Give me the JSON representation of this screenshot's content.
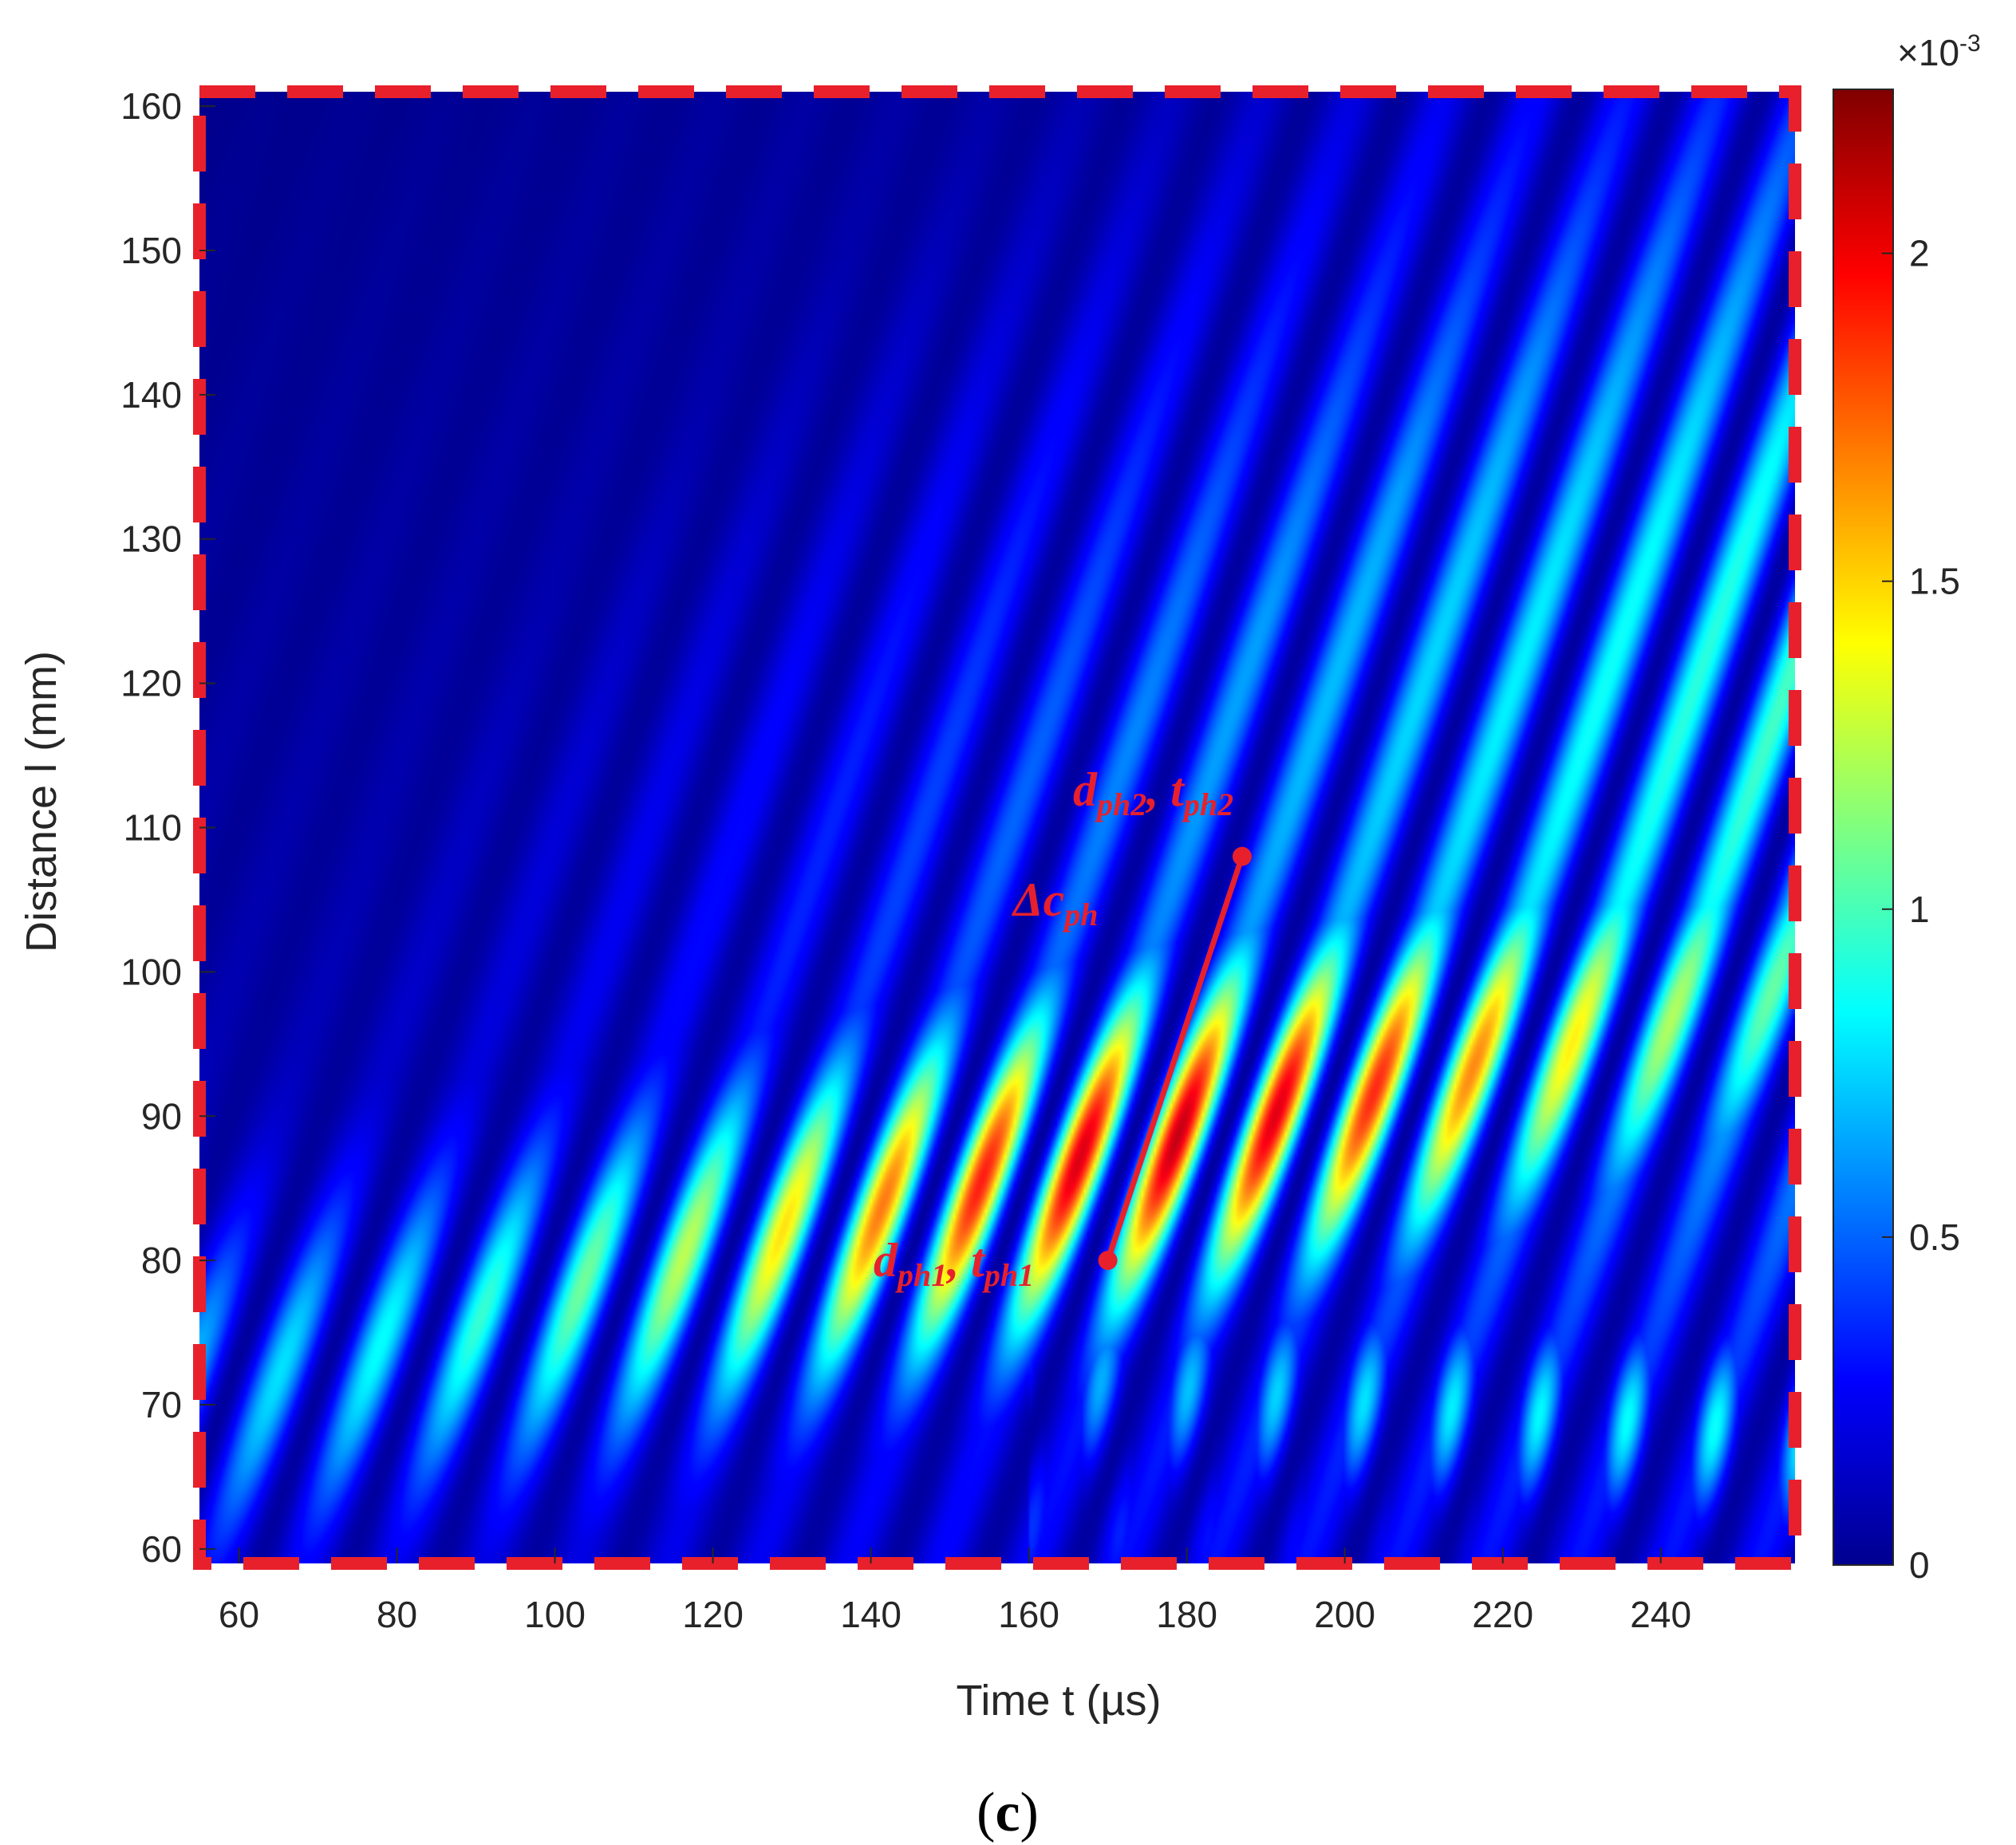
{
  "chart_data": {
    "type": "heatmap",
    "colormap": "jet",
    "xlabel": "Time t (µs)",
    "ylabel": "Distance l (mm)",
    "xlim": [
      55,
      257
    ],
    "ylim": [
      59,
      161
    ],
    "xticks": [
      "60",
      "80",
      "100",
      "120",
      "140",
      "160",
      "180",
      "200",
      "220",
      "240"
    ],
    "yticks": [
      "60",
      "70",
      "80",
      "90",
      "100",
      "110",
      "120",
      "130",
      "140",
      "150",
      "160"
    ],
    "colorbar": {
      "range": [
        0,
        0.00225
      ],
      "ticks": [
        "0",
        "0.5",
        "1",
        "1.5",
        "2"
      ],
      "exponent_label": "×10",
      "exponent_power": "-3"
    },
    "wave_model": {
      "stripe_spacing_us": 11.5,
      "slope_mm_per_us": 1.6,
      "peak_center": {
        "t": 178,
        "l": 93
      },
      "peak_value": 0.00223
    },
    "phase_segment": {
      "start": {
        "t": 170,
        "l": 80
      },
      "end": {
        "t": 187,
        "l": 108
      }
    },
    "annotations": {
      "point_start": {
        "d": "d",
        "d_sub": "ph1",
        "sep": ", ",
        "t": "t",
        "t_sub": "ph1"
      },
      "point_end": {
        "d": "d",
        "d_sub": "ph2",
        "sep": ", ",
        "t": "t",
        "t_sub": "ph2"
      },
      "delta": {
        "symbol": "Δ",
        "c": "c",
        "c_sub": "ph"
      }
    },
    "frame_color": "#e8202c",
    "grid": false
  },
  "panel_label": {
    "open": "(",
    "letter": "c",
    "close": ")"
  }
}
